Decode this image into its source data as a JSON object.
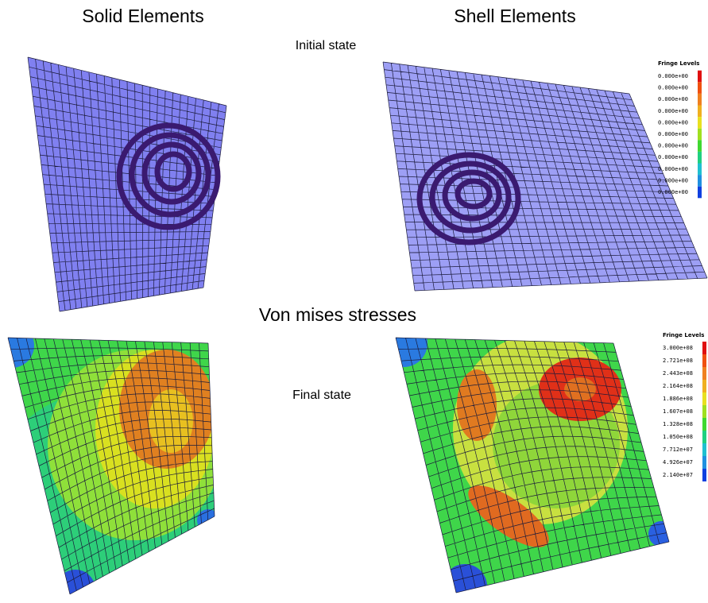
{
  "titles": {
    "solid": "Solid Elements",
    "shell": "Shell Elements"
  },
  "labels": {
    "initial": "Initial state",
    "von_mises": "Von mises stresses",
    "final": "Final state"
  },
  "legend_initial": {
    "title": "Fringe Levels",
    "levels": [
      "0.000e+00",
      "0.000e+00",
      "0.000e+00",
      "0.000e+00",
      "0.000e+00",
      "0.000e+00",
      "0.000e+00",
      "0.000e+00",
      "0.000e+00",
      "0.000e+00",
      "0.000e+00"
    ]
  },
  "legend_final": {
    "title": "Fringe Levels",
    "levels": [
      "3.000e+08",
      "2.721e+08",
      "2.443e+08",
      "2.164e+08",
      "1.886e+08",
      "1.607e+08",
      "1.328e+08",
      "1.050e+08",
      "7.712e+07",
      "4.926e+07",
      "2.140e+07"
    ]
  }
}
